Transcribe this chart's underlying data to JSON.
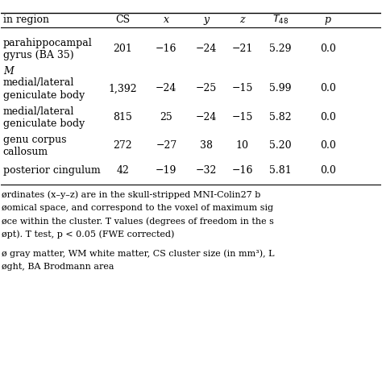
{
  "header": [
    "in region",
    "CS",
    "x",
    "y",
    "z",
    "T₄₈",
    "p"
  ],
  "section1_label": "parahippocampal\ngyrus (BA 35)",
  "section2_header": "M",
  "rows": [
    {
      "region": "parahippocampal\ngyrus (BA 35)",
      "cs": "201",
      "x": "−16",
      "y": "−24",
      "z": "−21",
      "t": "5.29",
      "p": "0.0"
    },
    {
      "region": "medial/lateral\ngeniculate body",
      "cs": "1,392",
      "x": "−24",
      "y": "−25",
      "z": "−15",
      "t": "5.99",
      "p": "0.0"
    },
    {
      "region": "medial/lateral\ngeniculate body",
      "cs": "815",
      "x": "25",
      "y": "−24",
      "z": "−15",
      "t": "5.82",
      "p": "0.0"
    },
    {
      "region": "genu corpus\ncallosum",
      "cs": "272",
      "x": "−27",
      "y": "38",
      "z": "10",
      "t": "5.20",
      "p": "0.0"
    },
    {
      "region": "posterior cingulum",
      "cs": "42",
      "x": "−19",
      "y": "−32",
      "z": "−16",
      "t": "5.81",
      "p": "0.0"
    }
  ],
  "footnote1": "ørdinates (x–y–z) are in the skull-stripped MNI-Colin27 b",
  "footnote2": "øomical space, and correspond to the voxel of maximum sig",
  "footnote3": "øce within the cluster. T values (degrees of freedom in the s",
  "footnote4": "øpt). T test, p < 0.05 (FWE corrected)",
  "footnote5": "ø gray matter, WM white matter, CS cluster size (in mm³), L",
  "footnote6": "øght, BA Brodmann area",
  "bg_color": "#ffffff",
  "text_color": "#000000",
  "line_color": "#000000",
  "font_size": 9,
  "footnote_font_size": 8
}
